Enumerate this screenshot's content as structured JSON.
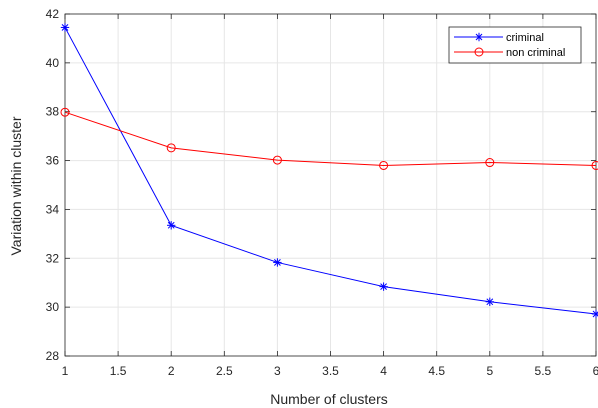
{
  "chart_data": {
    "type": "line",
    "title": "",
    "xlabel": "Number of clusters",
    "ylabel": "Variation within cluster",
    "x": [
      1,
      2,
      3,
      4,
      5,
      6
    ],
    "xlim": [
      1,
      6
    ],
    "ylim": [
      28,
      42
    ],
    "xticks": [
      1,
      1.5,
      2,
      2.5,
      3,
      3.5,
      4,
      4.5,
      5,
      5.5,
      6
    ],
    "xtick_labels": [
      "1",
      "1.5",
      "2",
      "2.5",
      "3",
      "3.5",
      "4",
      "4.5",
      "5",
      "5.5",
      "6"
    ],
    "yticks": [
      28,
      30,
      32,
      34,
      36,
      38,
      40,
      42
    ],
    "ytick_labels": [
      "28",
      "30",
      "32",
      "34",
      "36",
      "38",
      "40",
      "42"
    ],
    "grid": true,
    "legend_position": "top-right",
    "series": [
      {
        "name": "criminal",
        "color": "#0000ff",
        "marker": "asterisk",
        "values": [
          41.45,
          33.35,
          31.83,
          30.84,
          30.22,
          29.72
        ]
      },
      {
        "name": "non criminal",
        "color": "#ff0000",
        "marker": "circle",
        "values": [
          37.98,
          36.52,
          36.02,
          35.8,
          35.92,
          35.8
        ]
      }
    ]
  }
}
